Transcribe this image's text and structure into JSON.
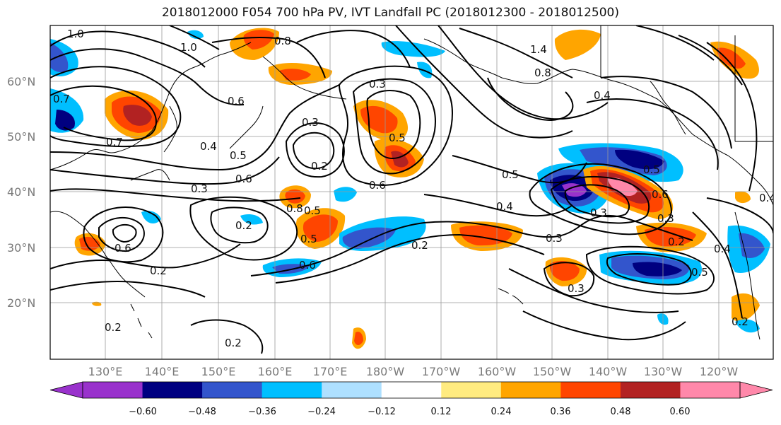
{
  "title": "2018012000 F054 700 hPa PV, IVT Landfall PC (2018012300 - 2018012500)",
  "lat_labels": [
    "60°N",
    "50°N",
    "40°N",
    "30°N",
    "20°N"
  ],
  "lon_labels": [
    "130°E",
    "140°E",
    "150°E",
    "160°E",
    "170°E",
    "180°W",
    "170°W",
    "160°W",
    "150°W",
    "140°W",
    "130°W",
    "120°W"
  ],
  "colorbar": {
    "colors": [
      "#9932CC",
      "#000080",
      "#3355CC",
      "#00BFFF",
      "#AEE0FF",
      "#FFFFFF",
      "#FFEB80",
      "#FFA500",
      "#FF4500",
      "#B22222",
      "#FF88AA",
      "#FF88AA"
    ],
    "ticks": [
      "−0.60",
      "−0.48",
      "−0.36",
      "−0.24",
      "−0.12",
      "0.12",
      "0.24",
      "0.36",
      "0.48",
      "0.60"
    ]
  },
  "contour_labels": [
    "1.0",
    "1.0",
    "0.7",
    "0.6",
    "0.3",
    "0.2",
    "0.4",
    "0.5",
    "0.3",
    "0.6",
    "0.2",
    "0.3",
    "0.8",
    "0.5",
    "0.6",
    "0.5",
    "0.6",
    "0.2",
    "0.2",
    "0.3",
    "0.4",
    "0.5",
    "0.6",
    "0.3",
    "0.2",
    "0.4",
    "0.3",
    "0.5",
    "0.2",
    "0.2",
    "0.7",
    "0.5",
    "0.4",
    "0.2",
    "0.4",
    "0.5",
    "0.3",
    "1.4",
    "0.6",
    "0.8",
    "0.8"
  ]
}
